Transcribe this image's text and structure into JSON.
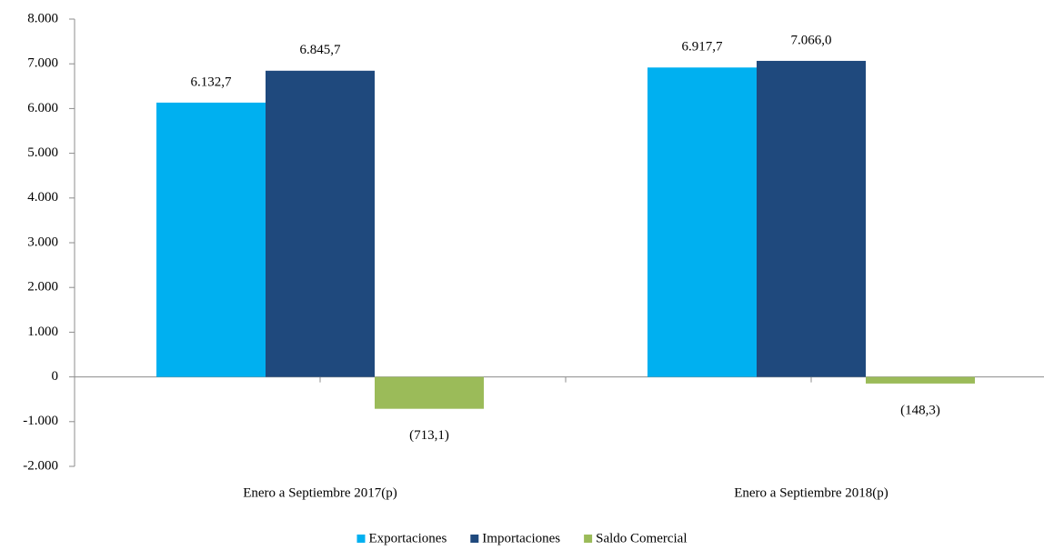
{
  "chart_data": {
    "type": "bar",
    "categories": [
      "Enero a Septiembre 2017(p)",
      "Enero a Septiembre 2018(p)"
    ],
    "series": [
      {
        "name": "Exportaciones",
        "color": "#00b0f0",
        "values": [
          6132.7,
          6917.7
        ],
        "value_labels": [
          "6.132,7",
          "6.917,7"
        ]
      },
      {
        "name": "Importaciones",
        "color": "#1f497d",
        "values": [
          6845.7,
          7066.0
        ],
        "value_labels": [
          "6.845,7",
          "7.066,0"
        ]
      },
      {
        "name": "Saldo Comercial",
        "color": "#9bbb59",
        "values": [
          -713.1,
          -148.3
        ],
        "value_labels": [
          "(713,1)",
          "(148,3)"
        ]
      }
    ],
    "ylim": [
      -2000,
      8000
    ],
    "yticks": [
      {
        "value": -2000,
        "label": "-2.000"
      },
      {
        "value": -1000,
        "label": "-1.000"
      },
      0,
      {
        "value": 1000,
        "label": "1.000"
      },
      {
        "value": 2000,
        "label": "2.000"
      },
      {
        "value": 3000,
        "label": "3.000"
      },
      {
        "value": 4000,
        "label": "4.000"
      },
      {
        "value": 5000,
        "label": "5.000"
      },
      {
        "value": 6000,
        "label": "6.000"
      },
      {
        "value": 7000,
        "label": "7.000"
      },
      {
        "value": 8000,
        "label": "8.000"
      }
    ],
    "grid": false,
    "legend": "bottom"
  }
}
